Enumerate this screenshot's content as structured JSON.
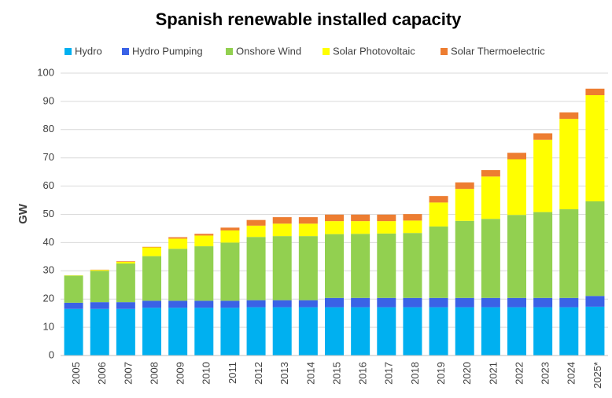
{
  "chart_data": {
    "type": "stacked_bar",
    "title": "Spanish renewable installed capacity",
    "y_label": "GW",
    "categories": [
      "2005",
      "2006",
      "2007",
      "2008",
      "2009",
      "2010",
      "2011",
      "2012",
      "2013",
      "2014",
      "2015",
      "2016",
      "2017",
      "2018",
      "2019",
      "2020",
      "2021",
      "2022",
      "2023",
      "2024",
      "2025*"
    ],
    "series": [
      {
        "name": "Hydro",
        "color": "#00b0f0",
        "values": [
          16.5,
          16.5,
          16.5,
          16.9,
          16.9,
          16.9,
          16.9,
          17.1,
          17.1,
          17.1,
          17.1,
          17.1,
          17.1,
          17.1,
          17.1,
          17.1,
          17.1,
          17.1,
          17.1,
          17.1,
          17.3
        ]
      },
      {
        "name": "Hydro Pumping",
        "color": "#3a62e6",
        "values": [
          2.2,
          2.4,
          2.4,
          2.5,
          2.5,
          2.5,
          2.5,
          2.5,
          2.5,
          2.5,
          3.3,
          3.3,
          3.3,
          3.3,
          3.3,
          3.3,
          3.3,
          3.3,
          3.3,
          3.3,
          3.8
        ]
      },
      {
        "name": "Onshore Wind",
        "color": "#92d050",
        "values": [
          9.6,
          11.1,
          13.7,
          15.8,
          18.4,
          19.3,
          20.6,
          22.4,
          22.7,
          22.7,
          22.6,
          22.7,
          22.8,
          23.0,
          25.3,
          27.3,
          28.0,
          29.4,
          30.4,
          31.4,
          33.5
        ]
      },
      {
        "name": "Solar Photovoltaic",
        "color": "#ffff00",
        "values": [
          0.1,
          0.3,
          0.6,
          3.1,
          3.6,
          3.8,
          4.3,
          4.0,
          4.4,
          4.4,
          4.6,
          4.5,
          4.4,
          4.4,
          8.5,
          11.3,
          15.0,
          19.7,
          25.6,
          32.0,
          37.6
        ]
      },
      {
        "name": "Solar Thermoelectric",
        "color": "#ed7d31",
        "values": [
          0.0,
          0.1,
          0.2,
          0.2,
          0.5,
          0.6,
          1.0,
          2.0,
          2.3,
          2.3,
          2.3,
          2.3,
          2.3,
          2.3,
          2.3,
          2.3,
          2.3,
          2.3,
          2.3,
          2.3,
          2.3
        ]
      }
    ],
    "ylim": [
      0,
      100
    ],
    "yticks": [
      0,
      10,
      20,
      30,
      40,
      50,
      60,
      70,
      80,
      90,
      100
    ],
    "grid": true,
    "legend": "top"
  }
}
